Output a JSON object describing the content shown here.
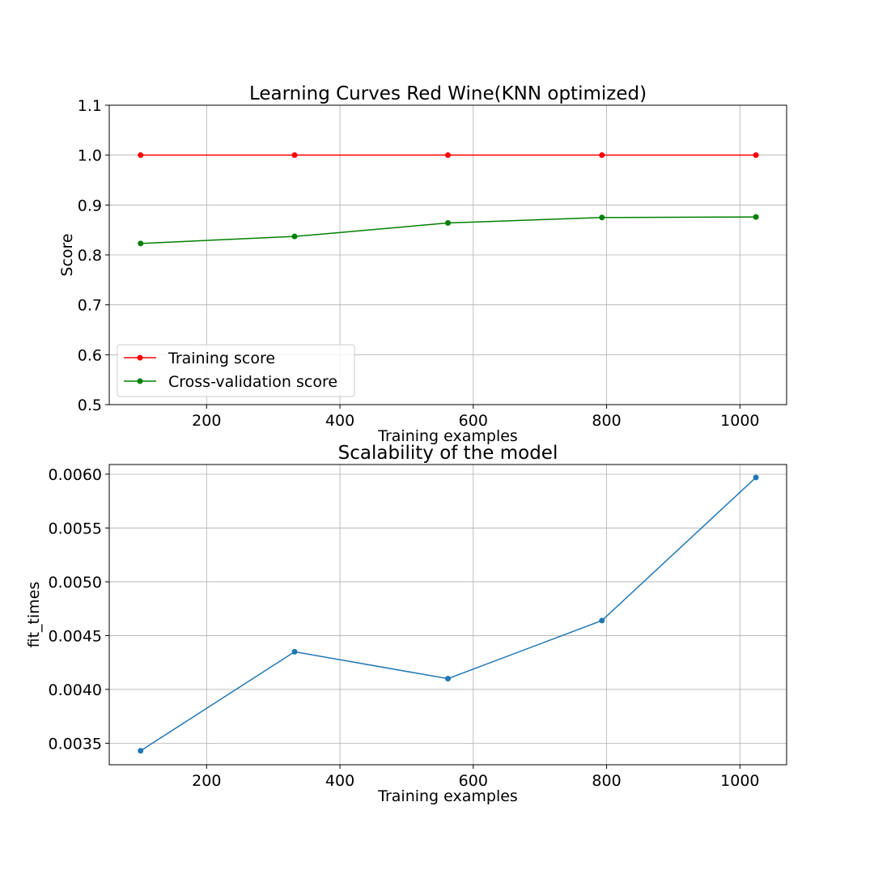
{
  "chart_data": [
    {
      "type": "line",
      "title": "Learning Curves Red Wine(KNN optimized)",
      "xlabel": "Training examples",
      "ylabel": "Score",
      "xlim": [
        54,
        1070
      ],
      "ylim": [
        0.5,
        1.1
      ],
      "xticks": [
        200,
        400,
        600,
        800,
        1000
      ],
      "xtick_labels": [
        "200",
        "400",
        "600",
        "800",
        "1000"
      ],
      "yticks": [
        0.5,
        0.6,
        0.7,
        0.8,
        0.9,
        1.0,
        1.1
      ],
      "ytick_labels": [
        "0.5",
        "0.6",
        "0.7",
        "0.8",
        "0.9",
        "1.0",
        "1.1"
      ],
      "grid": true,
      "legend": "lower left",
      "x": [
        101,
        332,
        562,
        793,
        1024
      ],
      "series": [
        {
          "name": "Training score",
          "color": "#ff0000",
          "values": [
            1.0,
            1.0,
            1.0,
            1.0,
            1.0
          ]
        },
        {
          "name": "Cross-validation score",
          "color": "#008000",
          "values": [
            0.823,
            0.837,
            0.864,
            0.875,
            0.876
          ]
        }
      ]
    },
    {
      "type": "line",
      "title": "Scalability of the model",
      "xlabel": "Training examples",
      "ylabel": "fit_times",
      "xlim": [
        54,
        1070
      ],
      "ylim": [
        0.0033,
        0.00609
      ],
      "xticks": [
        200,
        400,
        600,
        800,
        1000
      ],
      "xtick_labels": [
        "200",
        "400",
        "600",
        "800",
        "1000"
      ],
      "yticks": [
        0.0035,
        0.004,
        0.0045,
        0.005,
        0.0055,
        0.006
      ],
      "ytick_labels": [
        "0.0035",
        "0.0040",
        "0.0045",
        "0.0050",
        "0.0055",
        "0.0060"
      ],
      "grid": true,
      "legend": "none",
      "x": [
        101,
        332,
        562,
        793,
        1024
      ],
      "series": [
        {
          "color": "#1f77b4",
          "values": [
            0.00343,
            0.00435,
            0.0041,
            0.00464,
            0.00597
          ]
        }
      ]
    }
  ]
}
